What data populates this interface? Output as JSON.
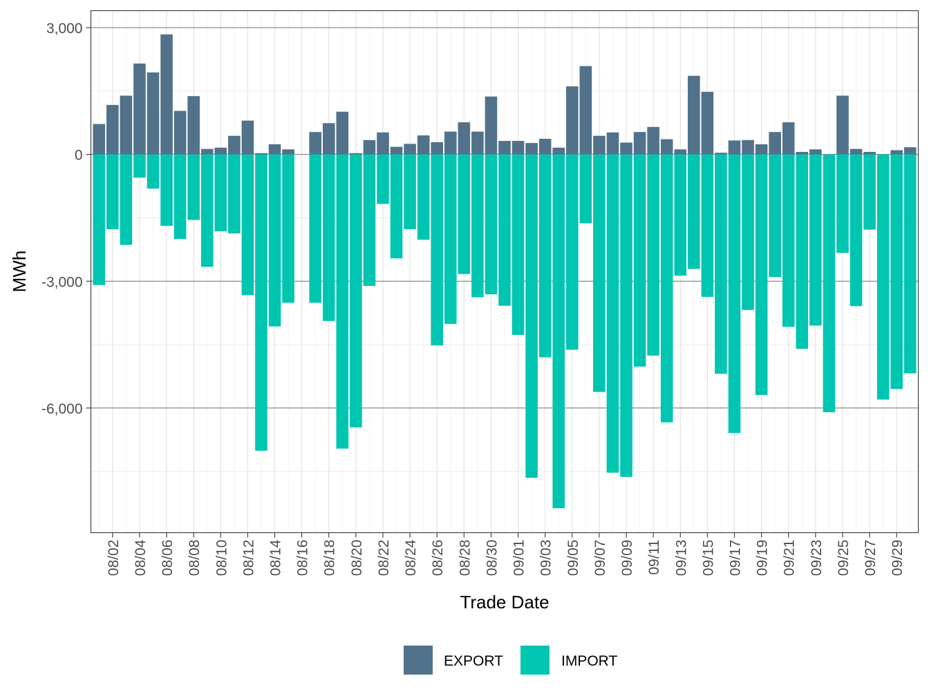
{
  "chart_data": {
    "type": "bar",
    "stacked": true,
    "title": "",
    "xlabel": "Trade Date",
    "ylabel": "MWh",
    "ylim": [
      -8950,
      3400
    ],
    "y_ticks": [
      3000,
      0,
      -3000,
      -6000
    ],
    "y_tick_labels": [
      "3,000",
      "0",
      "-3,000",
      "-6,000"
    ],
    "y_minor_ticks": [
      1500,
      -1500,
      -4500,
      -7500
    ],
    "legend_position": "bottom",
    "categories": [
      "08/01",
      "08/02",
      "08/03",
      "08/04",
      "08/05",
      "08/06",
      "08/07",
      "08/08",
      "08/09",
      "08/10",
      "08/11",
      "08/12",
      "08/13",
      "08/14",
      "08/15",
      "08/16",
      "08/17",
      "08/18",
      "08/19",
      "08/20",
      "08/21",
      "08/22",
      "08/23",
      "08/24",
      "08/25",
      "08/26",
      "08/27",
      "08/28",
      "08/29",
      "08/30",
      "08/31",
      "09/01",
      "09/02",
      "09/03",
      "09/04",
      "09/05",
      "09/06",
      "09/07",
      "09/08",
      "09/09",
      "09/10",
      "09/11",
      "09/12",
      "09/13",
      "09/14",
      "09/15",
      "09/16",
      "09/17",
      "09/18",
      "09/19",
      "09/20",
      "09/21",
      "09/22",
      "09/23",
      "09/24",
      "09/25",
      "09/26",
      "09/27",
      "09/28",
      "09/29",
      "09/30"
    ],
    "tick_labels": [
      "08/02",
      "08/04",
      "08/06",
      "08/08",
      "08/10",
      "08/12",
      "08/14",
      "08/16",
      "08/18",
      "08/20",
      "08/22",
      "08/24",
      "08/26",
      "08/28",
      "08/30",
      "09/01",
      "09/03",
      "09/05",
      "09/07",
      "09/09",
      "09/11",
      "09/13",
      "09/15",
      "09/17",
      "09/19",
      "09/21",
      "09/23",
      "09/25",
      "09/27",
      "09/29"
    ],
    "series": [
      {
        "name": "EXPORT",
        "color": "#51728a",
        "values": [
          720,
          1170,
          1390,
          2150,
          1940,
          2840,
          1030,
          1380,
          130,
          160,
          440,
          800,
          30,
          240,
          120,
          0,
          530,
          740,
          1010,
          30,
          340,
          520,
          180,
          250,
          450,
          290,
          540,
          760,
          540,
          1370,
          320,
          320,
          270,
          370,
          160,
          1610,
          2090,
          440,
          520,
          280,
          530,
          650,
          360,
          120,
          1860,
          1480,
          40,
          330,
          340,
          240,
          530,
          760,
          60,
          120,
          0,
          1390,
          130,
          60,
          0,
          100,
          170
        ]
      },
      {
        "name": "IMPORT",
        "color": "#00c5b1",
        "values": [
          -3090,
          -1770,
          -2140,
          -550,
          -810,
          -1690,
          -2000,
          -1550,
          -2660,
          -1820,
          -1870,
          -3330,
          -7010,
          -4070,
          -3510,
          0,
          -3510,
          -3940,
          -6960,
          -6460,
          -3110,
          -1170,
          -2460,
          -1770,
          -2020,
          -4520,
          -4010,
          -2830,
          -3380,
          -3310,
          -3580,
          -4270,
          -7650,
          -4800,
          -8370,
          -4620,
          -1630,
          -5620,
          -7530,
          -7630,
          -5020,
          -4760,
          -6340,
          -2870,
          -2710,
          -3370,
          -5190,
          -6590,
          -3680,
          -5690,
          -2900,
          -4080,
          -4600,
          -4050,
          -6100,
          -2330,
          -3590,
          -1780,
          -5800,
          -5550,
          -5180
        ]
      }
    ]
  }
}
